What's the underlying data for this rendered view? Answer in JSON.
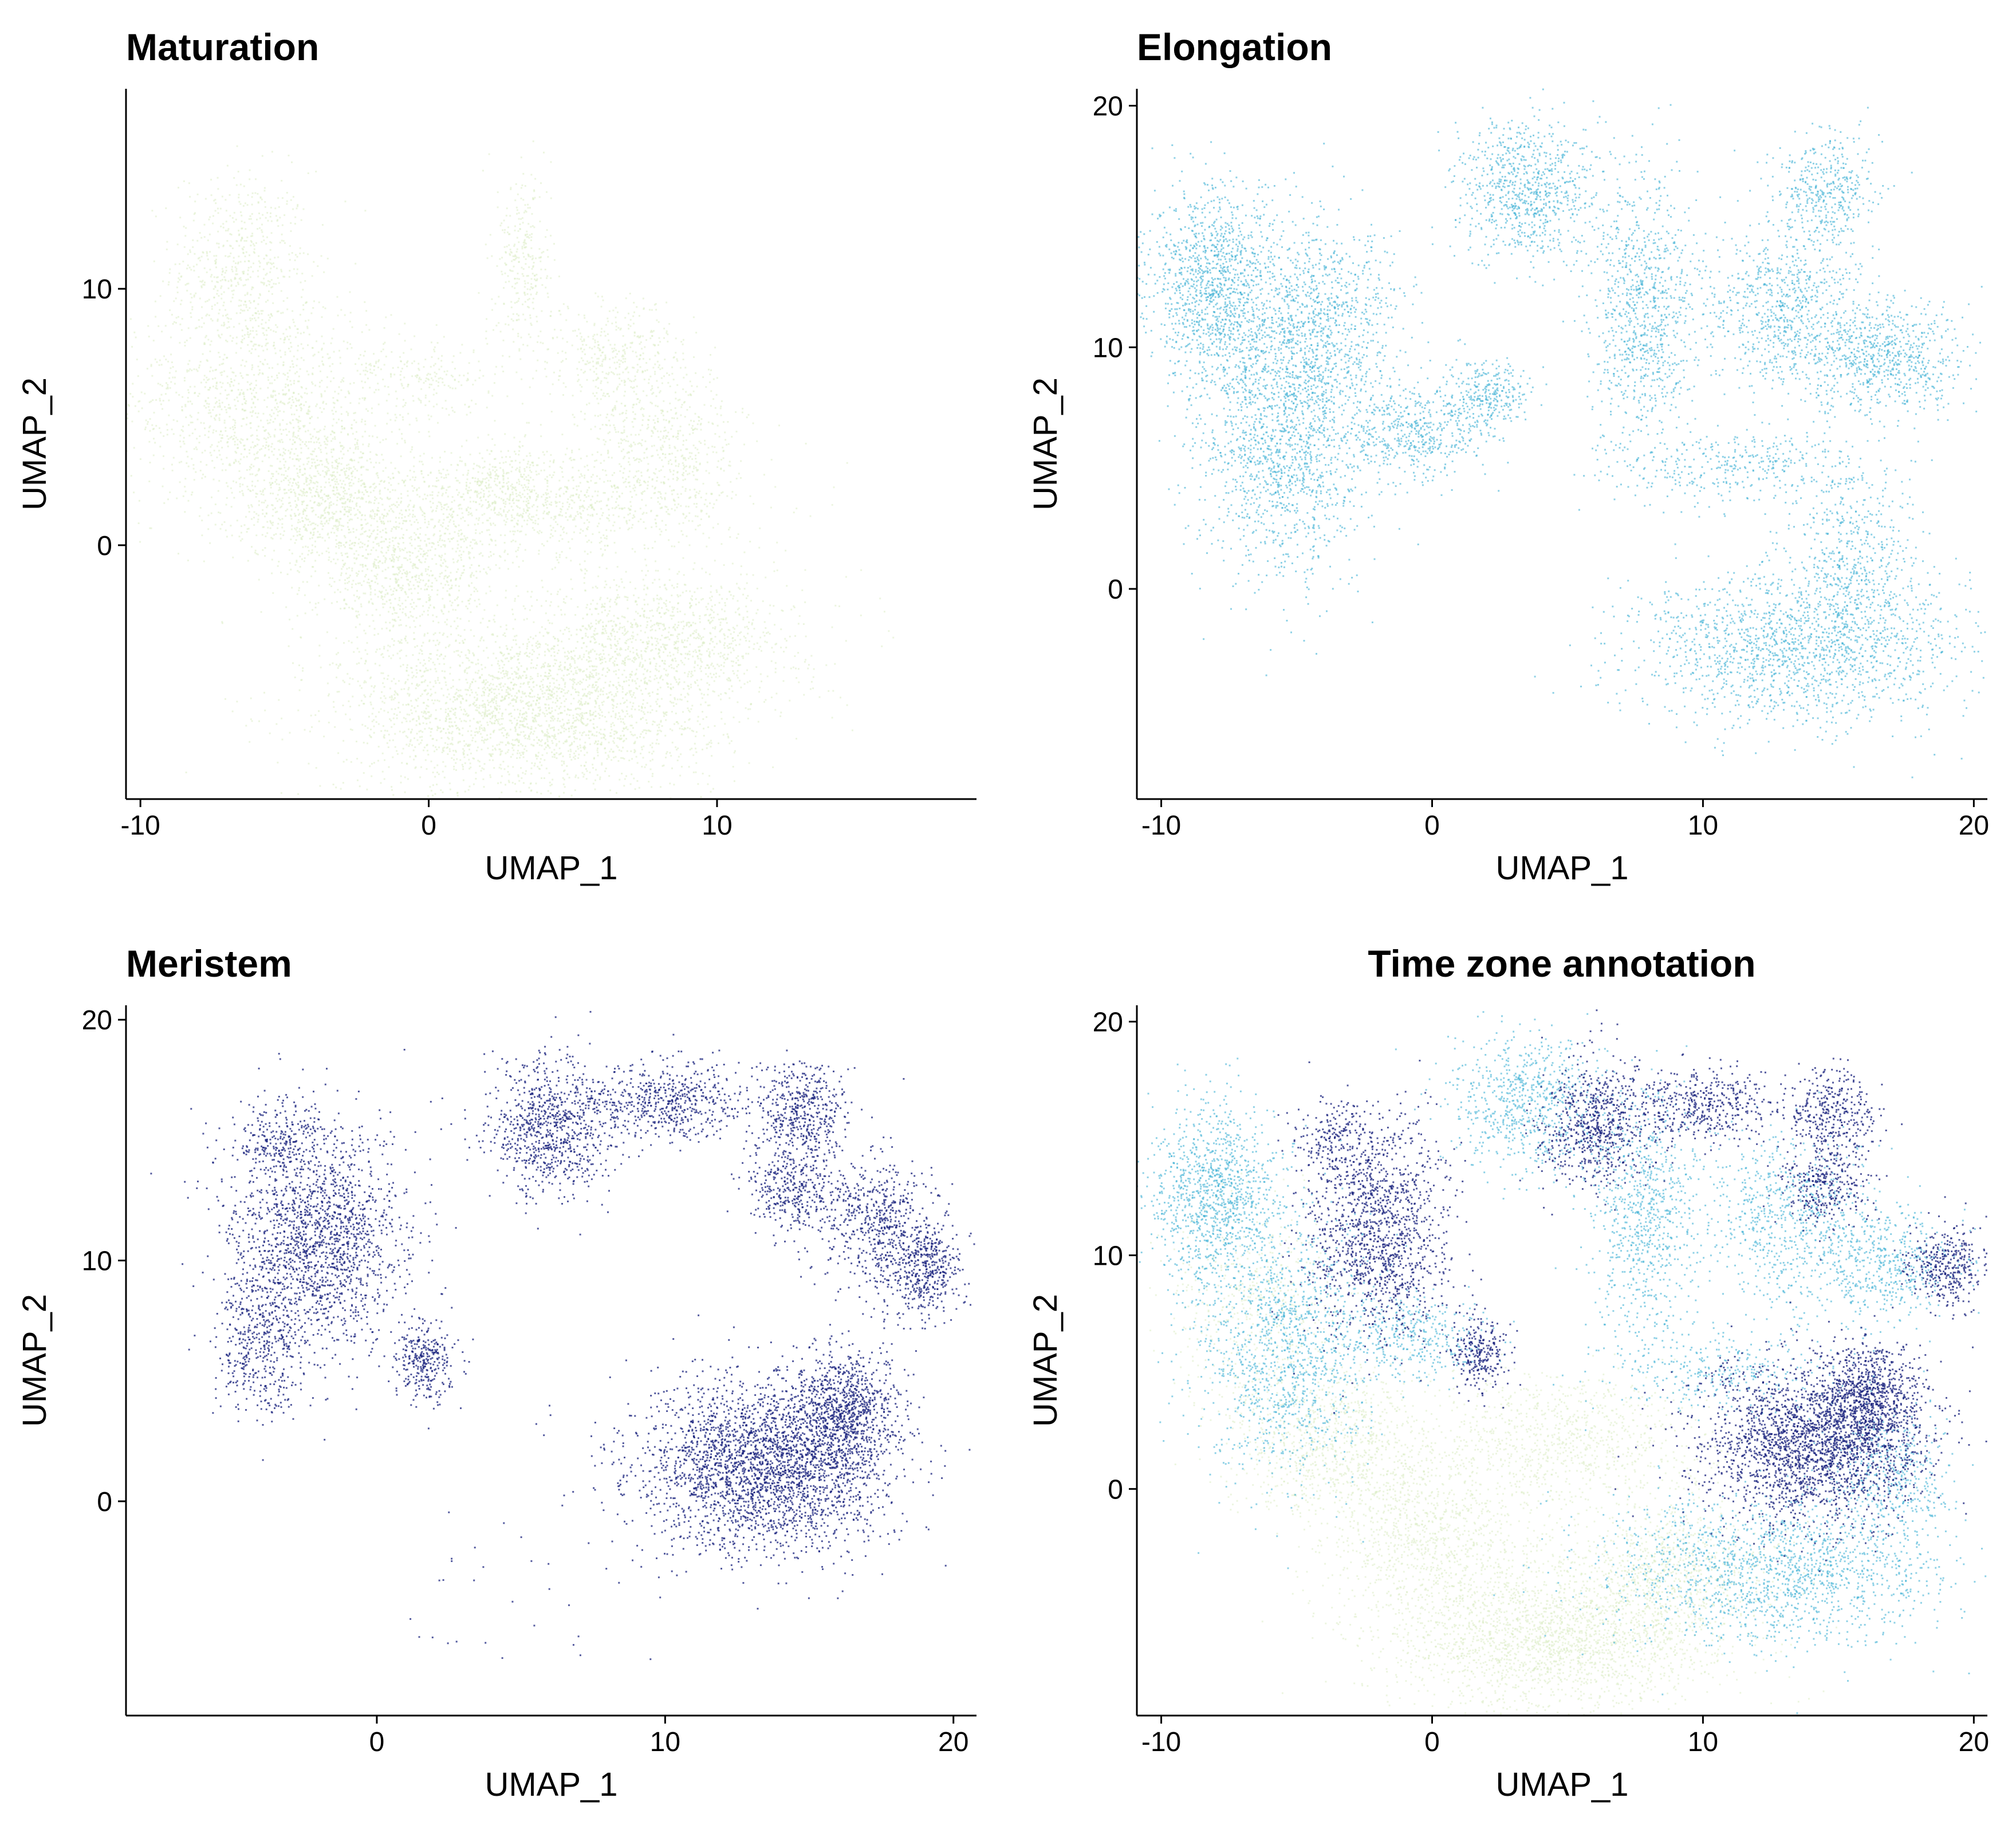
{
  "colors": {
    "maturation": "#dcecc6",
    "elongation": "#42b3d5",
    "meristem": "#1a237e"
  },
  "chart_data": [
    {
      "type": "scatter",
      "title": "Maturation",
      "xlabel": "UMAP_1",
      "ylabel": "UMAP_2",
      "xlim": [
        -10.5,
        19
      ],
      "ylim": [
        -9.9,
        17.8
      ],
      "xticks": [
        -10,
        0,
        10
      ],
      "yticks": [
        0,
        10
      ],
      "series": [
        {
          "color": "#dcecc6",
          "point_size": 3,
          "density": 0.55,
          "clusters": [
            {
              "center": [
                -6.5,
                11.0
              ],
              "spread": [
                1.2,
                1.8
              ],
              "n": 550
            },
            {
              "center": [
                -6.0,
                5.5
              ],
              "spread": [
                2.3,
                2.2
              ],
              "n": 1300
            },
            {
              "center": [
                -3.5,
                1.8
              ],
              "spread": [
                1.6,
                1.4
              ],
              "n": 900
            },
            {
              "center": [
                -0.8,
                -1.2
              ],
              "spread": [
                1.5,
                1.5
              ],
              "n": 900
            },
            {
              "center": [
                3.5,
                -6.5
              ],
              "spread": [
                3.3,
                1.6
              ],
              "n": 2600
            },
            {
              "center": [
                8.2,
                -3.5
              ],
              "spread": [
                2.4,
                1.3
              ],
              "n": 1100
            },
            {
              "center": [
                4.2,
                1.5
              ],
              "spread": [
                3.2,
                1.0
              ],
              "n": 900
            },
            {
              "center": [
                8.0,
                4.0
              ],
              "spread": [
                1.5,
                1.5
              ],
              "n": 600
            },
            {
              "center": [
                6.5,
                7.5
              ],
              "spread": [
                1.2,
                1.0
              ],
              "n": 350
            },
            {
              "center": [
                3.3,
                11.0
              ],
              "spread": [
                0.5,
                1.8
              ],
              "n": 300
            },
            {
              "center": [
                0.0,
                6.5
              ],
              "spread": [
                1.4,
                0.9
              ],
              "n": 220
            },
            {
              "center": [
                2.5,
                2.5
              ],
              "spread": [
                1.0,
                0.8
              ],
              "n": 250
            }
          ]
        }
      ]
    },
    {
      "type": "scatter",
      "title": "Elongation",
      "xlabel": "UMAP_1",
      "ylabel": "UMAP_2",
      "xlim": [
        -10.9,
        20.5
      ],
      "ylim": [
        -8.7,
        20.7
      ],
      "xticks": [
        -10,
        0,
        10,
        20
      ],
      "yticks": [
        0,
        10,
        20
      ],
      "series": [
        {
          "color": "#42b3d5",
          "point_size": 3,
          "density": 0.6,
          "clusters": [
            {
              "center": [
                -8.0,
                12.5
              ],
              "spread": [
                1.2,
                2.0
              ],
              "n": 1200
            },
            {
              "center": [
                -5.5,
                6.0
              ],
              "spread": [
                1.6,
                2.8
              ],
              "n": 1500
            },
            {
              "center": [
                -4.0,
                11.0
              ],
              "spread": [
                1.5,
                2.2
              ],
              "n": 900
            },
            {
              "center": [
                -0.5,
                6.5
              ],
              "spread": [
                1.2,
                0.9
              ],
              "n": 450
            },
            {
              "center": [
                2.0,
                8.0
              ],
              "spread": [
                0.8,
                0.7
              ],
              "n": 300
            },
            {
              "center": [
                3.5,
                16.5
              ],
              "spread": [
                1.3,
                1.5
              ],
              "n": 800
            },
            {
              "center": [
                7.8,
                11.5
              ],
              "spread": [
                1.0,
                2.8
              ],
              "n": 900
            },
            {
              "center": [
                13.0,
                11.5
              ],
              "spread": [
                1.5,
                1.8
              ],
              "n": 800
            },
            {
              "center": [
                14.5,
                16.5
              ],
              "spread": [
                0.9,
                1.2
              ],
              "n": 400
            },
            {
              "center": [
                16.8,
                9.5
              ],
              "spread": [
                1.4,
                1.2
              ],
              "n": 700
            },
            {
              "center": [
                11.0,
                5.0
              ],
              "spread": [
                2.2,
                0.8
              ],
              "n": 350
            },
            {
              "center": [
                13.5,
                -2.5
              ],
              "spread": [
                3.0,
                1.6
              ],
              "n": 1600
            },
            {
              "center": [
                15.5,
                1.5
              ],
              "spread": [
                1.3,
                1.8
              ],
              "n": 500
            }
          ]
        }
      ]
    },
    {
      "type": "scatter",
      "title": "Meristem",
      "xlabel": "UMAP_1",
      "ylabel": "UMAP_2",
      "xlim": [
        -8.7,
        20.8
      ],
      "ylim": [
        -8.9,
        20.6
      ],
      "xticks": [
        0,
        10,
        20
      ],
      "yticks": [
        0,
        10,
        20
      ],
      "series": [
        {
          "color": "#1a237e",
          "point_size": 3,
          "density": 0.75,
          "clusters": [
            {
              "center": [
                -2.0,
                11.0
              ],
              "spread": [
                1.5,
                2.3
              ],
              "n": 1700
            },
            {
              "center": [
                -4.0,
                6.5
              ],
              "spread": [
                0.8,
                1.6
              ],
              "n": 450
            },
            {
              "center": [
                -3.5,
                15.0
              ],
              "spread": [
                0.8,
                0.8
              ],
              "n": 220
            },
            {
              "center": [
                1.7,
                5.8
              ],
              "spread": [
                0.5,
                0.8
              ],
              "n": 300
            },
            {
              "center": [
                6.0,
                15.5
              ],
              "spread": [
                1.0,
                1.5
              ],
              "n": 800
            },
            {
              "center": [
                10.0,
                16.5
              ],
              "spread": [
                1.5,
                0.8
              ],
              "n": 600
            },
            {
              "center": [
                14.8,
                16.0
              ],
              "spread": [
                0.8,
                1.0
              ],
              "n": 450
            },
            {
              "center": [
                14.5,
                13.0
              ],
              "spread": [
                0.8,
                0.9
              ],
              "n": 350
            },
            {
              "center": [
                17.5,
                11.5
              ],
              "spread": [
                1.1,
                1.4
              ],
              "n": 600
            },
            {
              "center": [
                19.0,
                9.5
              ],
              "spread": [
                0.7,
                0.9
              ],
              "n": 400
            },
            {
              "center": [
                13.5,
                1.5
              ],
              "spread": [
                2.2,
                1.8
              ],
              "n": 2800
            },
            {
              "center": [
                16.2,
                3.8
              ],
              "spread": [
                0.9,
                1.2
              ],
              "n": 800
            },
            {
              "center": [
                5.5,
                -4.0
              ],
              "spread": [
                3.0,
                1.8
              ],
              "n": 30
            }
          ]
        }
      ]
    },
    {
      "type": "scatter",
      "title": "Time zone annotation",
      "xlabel": "UMAP_1",
      "ylabel": "UMAP_2",
      "xlim": [
        -10.9,
        20.5
      ],
      "ylim": [
        -9.7,
        20.7
      ],
      "xticks": [
        -10,
        0,
        10,
        20
      ],
      "yticks": [
        0,
        10,
        20
      ],
      "series": [
        {
          "color": "#dcecc6",
          "point_size": 3,
          "density": 0.55,
          "clusters": [
            {
              "center": [
                -6.5,
                8.0
              ],
              "spread": [
                1.6,
                2.2
              ],
              "n": 500
            },
            {
              "center": [
                -3.5,
                2.0
              ],
              "spread": [
                1.8,
                1.6
              ],
              "n": 900
            },
            {
              "center": [
                0.0,
                -2.0
              ],
              "spread": [
                2.0,
                1.8
              ],
              "n": 1000
            },
            {
              "center": [
                4.5,
                -6.5
              ],
              "spread": [
                3.2,
                1.5
              ],
              "n": 2200
            },
            {
              "center": [
                5.0,
                2.0
              ],
              "spread": [
                2.5,
                1.5
              ],
              "n": 900
            },
            {
              "center": [
                8.5,
                -3.5
              ],
              "spread": [
                2.0,
                1.3
              ],
              "n": 700
            }
          ]
        },
        {
          "color": "#42b3d5",
          "point_size": 3,
          "density": 0.6,
          "clusters": [
            {
              "center": [
                -8.0,
                12.5
              ],
              "spread": [
                1.2,
                2.0
              ],
              "n": 1100
            },
            {
              "center": [
                -5.5,
                6.0
              ],
              "spread": [
                1.6,
                2.8
              ],
              "n": 1300
            },
            {
              "center": [
                -0.5,
                6.5
              ],
              "spread": [
                1.2,
                0.9
              ],
              "n": 350
            },
            {
              "center": [
                3.5,
                16.5
              ],
              "spread": [
                1.3,
                1.5
              ],
              "n": 700
            },
            {
              "center": [
                7.8,
                11.5
              ],
              "spread": [
                1.0,
                2.8
              ],
              "n": 800
            },
            {
              "center": [
                13.0,
                11.5
              ],
              "spread": [
                1.5,
                1.8
              ],
              "n": 700
            },
            {
              "center": [
                16.8,
                9.5
              ],
              "spread": [
                1.4,
                1.2
              ],
              "n": 500
            },
            {
              "center": [
                11.0,
                5.0
              ],
              "spread": [
                2.2,
                0.8
              ],
              "n": 300
            },
            {
              "center": [
                12.5,
                -3.5
              ],
              "spread": [
                3.2,
                1.6
              ],
              "n": 1600
            },
            {
              "center": [
                17.0,
                0.5
              ],
              "spread": [
                1.0,
                1.5
              ],
              "n": 400
            }
          ]
        },
        {
          "color": "#1a237e",
          "point_size": 3,
          "density": 0.75,
          "clusters": [
            {
              "center": [
                -2.0,
                11.0
              ],
              "spread": [
                1.3,
                2.2
              ],
              "n": 1300
            },
            {
              "center": [
                -3.5,
                15.0
              ],
              "spread": [
                0.8,
                0.8
              ],
              "n": 200
            },
            {
              "center": [
                1.7,
                5.8
              ],
              "spread": [
                0.5,
                0.8
              ],
              "n": 260
            },
            {
              "center": [
                6.0,
                15.5
              ],
              "spread": [
                1.0,
                1.4
              ],
              "n": 650
            },
            {
              "center": [
                10.0,
                16.5
              ],
              "spread": [
                1.4,
                0.8
              ],
              "n": 450
            },
            {
              "center": [
                14.8,
                16.0
              ],
              "spread": [
                0.8,
                1.0
              ],
              "n": 350
            },
            {
              "center": [
                14.5,
                13.0
              ],
              "spread": [
                0.8,
                0.9
              ],
              "n": 300
            },
            {
              "center": [
                19.0,
                9.5
              ],
              "spread": [
                0.7,
                0.9
              ],
              "n": 350
            },
            {
              "center": [
                14.0,
                2.0
              ],
              "spread": [
                2.0,
                1.7
              ],
              "n": 2300
            },
            {
              "center": [
                16.2,
                4.0
              ],
              "spread": [
                0.9,
                1.2
              ],
              "n": 700
            }
          ]
        }
      ]
    }
  ]
}
